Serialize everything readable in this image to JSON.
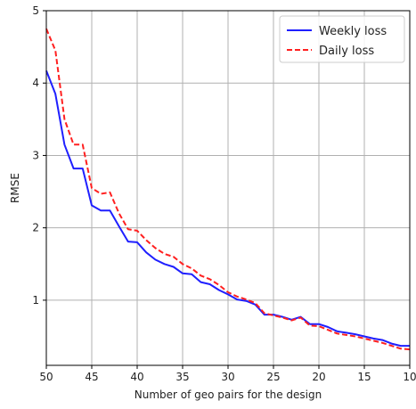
{
  "chart_data": {
    "type": "line",
    "title": "",
    "xlabel": "Number of geo pairs for the design",
    "ylabel": "RMSE",
    "xlim": [
      50,
      10
    ],
    "ylim": [
      0.1,
      5
    ],
    "x_ticks": [
      50,
      45,
      40,
      35,
      30,
      25,
      20,
      15,
      10
    ],
    "y_ticks": [
      1,
      2,
      3,
      4,
      5
    ],
    "grid": true,
    "legend_position": "top-right",
    "x": [
      50,
      49,
      48,
      47,
      46,
      45,
      44,
      43,
      42,
      41,
      40,
      39,
      38,
      37,
      36,
      35,
      34,
      33,
      32,
      31,
      30,
      29,
      28,
      27,
      26,
      25,
      24,
      23,
      22,
      21,
      20,
      19,
      18,
      17,
      16,
      15,
      14,
      13,
      12,
      11,
      10
    ],
    "series": [
      {
        "name": "Weekly loss",
        "color": "#1f1fff",
        "style": "solid",
        "values": [
          4.17,
          3.85,
          3.15,
          2.82,
          2.82,
          2.31,
          2.24,
          2.24,
          2.02,
          1.81,
          1.8,
          1.66,
          1.56,
          1.5,
          1.46,
          1.37,
          1.36,
          1.25,
          1.22,
          1.14,
          1.08,
          1.01,
          0.99,
          0.94,
          0.8,
          0.8,
          0.77,
          0.73,
          0.77,
          0.67,
          0.67,
          0.63,
          0.57,
          0.55,
          0.53,
          0.5,
          0.47,
          0.45,
          0.4,
          0.37,
          0.37
        ]
      },
      {
        "name": "Daily loss",
        "color": "#ff2020",
        "style": "dashed",
        "values": [
          4.75,
          4.45,
          3.5,
          3.15,
          3.15,
          2.55,
          2.47,
          2.49,
          2.2,
          1.98,
          1.96,
          1.83,
          1.72,
          1.64,
          1.6,
          1.5,
          1.44,
          1.34,
          1.29,
          1.21,
          1.11,
          1.05,
          1.01,
          0.96,
          0.82,
          0.79,
          0.76,
          0.72,
          0.76,
          0.65,
          0.64,
          0.59,
          0.54,
          0.52,
          0.5,
          0.47,
          0.44,
          0.41,
          0.37,
          0.33,
          0.32
        ]
      }
    ]
  }
}
